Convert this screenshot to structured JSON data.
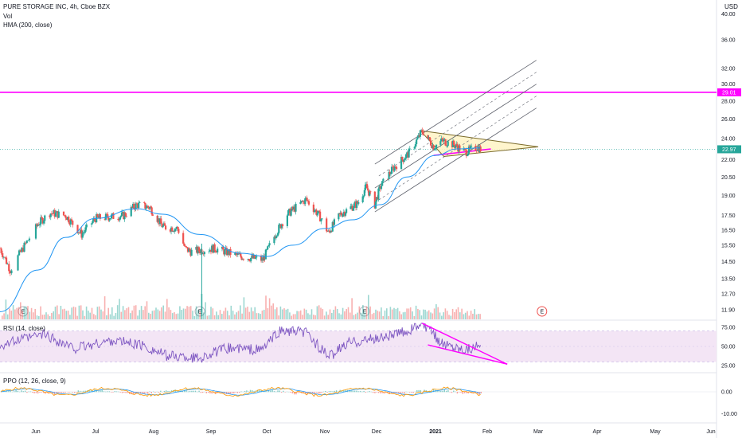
{
  "header": {
    "symbol_line": "PURE STORAGE INC, 4h, Cboe BZX",
    "vol_label": "Vol",
    "hma_label": "HMA (200, close)",
    "rsi_label": "RSI (14, close)",
    "ppo_label": "PPO (12, 26, close, 9)",
    "currency": "USD"
  },
  "colors": {
    "up": "#26a69a",
    "down": "#ef5350",
    "hma": "#2196f3",
    "magenta": "#ff00ff",
    "rsi_line": "#7e57c2",
    "rsi_band": "#f3e5f5",
    "triangle_fill": "#fff3c4",
    "triangle_edge": "#7a6a2a",
    "channel": "#5d606b",
    "ppo_line": "#ff9800",
    "ppo_signal": "#2196f3",
    "last_price_bg": "#26a69a"
  },
  "chart_data": [
    {
      "type": "candlestick",
      "title": "PURE STORAGE INC, 4h, Cboe BZX",
      "y_scale": "log",
      "ylabel": "USD",
      "ylim": [
        11.4,
        41.0
      ],
      "y_ticks": [
        "11.90",
        "12.70",
        "13.50",
        "14.50",
        "15.50",
        "16.50",
        "17.50",
        "19.00",
        "20.50",
        "22.00",
        "24.00",
        "26.00",
        "28.00",
        "30.00",
        "32.00",
        "36.00",
        "40.00"
      ],
      "x_ticks": [
        "Jun",
        "Jul",
        "Aug",
        "Sep",
        "Oct",
        "Nov",
        "Dec",
        "2021",
        "Feb",
        "Mar",
        "Apr",
        "May",
        "Jun"
      ],
      "last_price": "22.97",
      "horizontal_level": "29.01",
      "close_waypoints": [
        {
          "date": "2020-05-18",
          "close": 15.3
        },
        {
          "date": "2020-05-22",
          "close": 14.0
        },
        {
          "date": "2020-06-02",
          "close": 16.9
        },
        {
          "date": "2020-06-08",
          "close": 17.7
        },
        {
          "date": "2020-06-16",
          "close": 17.5
        },
        {
          "date": "2020-06-24",
          "close": 16.2
        },
        {
          "date": "2020-07-01",
          "close": 17.3
        },
        {
          "date": "2020-07-08",
          "close": 17.4
        },
        {
          "date": "2020-07-16",
          "close": 17.5
        },
        {
          "date": "2020-07-23",
          "close": 18.3
        },
        {
          "date": "2020-07-30",
          "close": 18.1
        },
        {
          "date": "2020-08-06",
          "close": 16.7
        },
        {
          "date": "2020-08-14",
          "close": 16.6
        },
        {
          "date": "2020-08-18",
          "close": 15.3
        },
        {
          "date": "2020-08-21",
          "close": 15.1
        },
        {
          "date": "2020-09-03",
          "close": 15.3
        },
        {
          "date": "2020-09-17",
          "close": 14.8
        },
        {
          "date": "2020-09-29",
          "close": 14.6
        },
        {
          "date": "2020-10-06",
          "close": 16.3
        },
        {
          "date": "2020-10-12",
          "close": 17.6
        },
        {
          "date": "2020-10-22",
          "close": 18.7
        },
        {
          "date": "2020-10-29",
          "close": 17.5
        },
        {
          "date": "2020-11-03",
          "close": 16.3
        },
        {
          "date": "2020-11-10",
          "close": 17.6
        },
        {
          "date": "2020-11-20",
          "close": 18.4
        },
        {
          "date": "2020-11-25",
          "close": 19.7
        },
        {
          "date": "2020-11-30",
          "close": 18.3
        },
        {
          "date": "2020-12-03",
          "close": 19.7
        },
        {
          "date": "2020-12-10",
          "close": 21.3
        },
        {
          "date": "2020-12-18",
          "close": 22.6
        },
        {
          "date": "2020-12-23",
          "close": 24.1
        },
        {
          "date": "2020-12-25",
          "close": 24.8
        },
        {
          "date": "2020-12-31",
          "close": 23.2
        },
        {
          "date": "2021-01-05",
          "close": 23.8
        },
        {
          "date": "2021-01-12",
          "close": 23.4
        },
        {
          "date": "2021-01-19",
          "close": 22.7
        },
        {
          "date": "2021-01-26",
          "close": 23.2
        },
        {
          "date": "2021-01-28",
          "close": 22.97
        }
      ],
      "hma_waypoints": [
        {
          "date": "2020-05-18",
          "value": 11.8
        },
        {
          "date": "2020-06-02",
          "value": 14.0
        },
        {
          "date": "2020-06-16",
          "value": 16.0
        },
        {
          "date": "2020-07-01",
          "value": 17.3
        },
        {
          "date": "2020-07-23",
          "value": 18.0
        },
        {
          "date": "2020-08-06",
          "value": 17.6
        },
        {
          "date": "2020-08-26",
          "value": 16.2
        },
        {
          "date": "2020-09-17",
          "value": 15.0
        },
        {
          "date": "2020-10-01",
          "value": 14.8
        },
        {
          "date": "2020-10-15",
          "value": 15.5
        },
        {
          "date": "2020-11-01",
          "value": 16.6
        },
        {
          "date": "2020-11-17",
          "value": 17.2
        },
        {
          "date": "2020-12-03",
          "value": 18.3
        },
        {
          "date": "2020-12-17",
          "value": 20.5
        },
        {
          "date": "2021-01-01",
          "value": 22.4
        },
        {
          "date": "2021-01-14",
          "value": 23.0
        },
        {
          "date": "2021-01-28",
          "value": 23.1
        }
      ],
      "earnings_markers": [
        "2020-05-27",
        "2020-08-26",
        "2020-11-24",
        "2021-03-03"
      ],
      "earnings_symbol": "E",
      "annotations": [
        {
          "kind": "triangle",
          "points": [
            {
              "date": "2020-12-24",
              "price": 24.8
            },
            {
              "date": "2021-03-01",
              "price": 23.2
            },
            {
              "date": "2021-01-06",
              "price": 22.3
            }
          ]
        },
        {
          "kind": "trendline",
          "from": {
            "date": "2020-12-31",
            "price": 22.4
          },
          "to": {
            "date": "2021-02-03",
            "price": 23.0
          }
        },
        {
          "kind": "channel",
          "from": {
            "date": "2020-11-30",
            "price": 19.6
          },
          "to": {
            "date": "2021-02-28",
            "price": 30.0
          }
        },
        {
          "kind": "horizontal_line",
          "price": 29.01
        }
      ]
    },
    {
      "type": "volume",
      "label": "Vol",
      "note": "volume bars along the bottom of the price pane; spike near 2020-08-27"
    },
    {
      "type": "line",
      "label": "RSI (14, close)",
      "y_ticks": [
        "25.00",
        "50.00",
        "75.00"
      ],
      "ylim": [
        18,
        82
      ],
      "band": [
        30,
        70
      ],
      "rsi_waypoints": [
        {
          "date": "2020-05-18",
          "value": 52
        },
        {
          "date": "2020-06-05",
          "value": 66
        },
        {
          "date": "2020-06-20",
          "value": 47
        },
        {
          "date": "2020-07-10",
          "value": 58
        },
        {
          "date": "2020-07-25",
          "value": 52
        },
        {
          "date": "2020-08-08",
          "value": 38
        },
        {
          "date": "2020-08-26",
          "value": 35
        },
        {
          "date": "2020-09-10",
          "value": 48
        },
        {
          "date": "2020-09-28",
          "value": 45
        },
        {
          "date": "2020-10-08",
          "value": 70
        },
        {
          "date": "2020-10-22",
          "value": 68
        },
        {
          "date": "2020-11-03",
          "value": 36
        },
        {
          "date": "2020-11-15",
          "value": 55
        },
        {
          "date": "2020-12-01",
          "value": 60
        },
        {
          "date": "2020-12-15",
          "value": 68
        },
        {
          "date": "2020-12-25",
          "value": 79
        },
        {
          "date": "2021-01-05",
          "value": 54
        },
        {
          "date": "2021-01-18",
          "value": 47
        },
        {
          "date": "2021-01-28",
          "value": 50
        }
      ],
      "trendlines": [
        {
          "from": {
            "date": "2020-12-25",
            "value": 80
          },
          "to": {
            "date": "2021-02-12",
            "value": 27
          }
        },
        {
          "from": {
            "date": "2020-12-28",
            "value": 52
          },
          "to": {
            "date": "2021-02-12",
            "value": 27
          }
        }
      ]
    },
    {
      "type": "line",
      "label": "PPO (12, 26, close, 9)",
      "y_ticks": [
        "0.00",
        "-10.00"
      ],
      "ylim": [
        -12,
        8
      ],
      "note": "PPO line and signal oscillating near 0.00 with small histogram"
    }
  ]
}
